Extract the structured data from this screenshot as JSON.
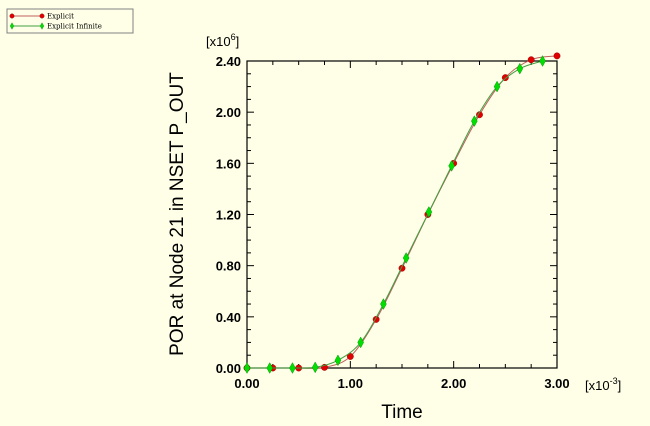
{
  "chart_data": {
    "type": "line",
    "xlabel": "Time",
    "ylabel": "POR at Node 21 in NSET P_OUT",
    "x_exponent_label": "[x10",
    "x_exponent_power": "-3",
    "y_exponent_label": "[x10",
    "y_exponent_power": "6",
    "exponent_close": "]",
    "xlim": [
      0.0,
      3.0
    ],
    "ylim": [
      0.0,
      2.4
    ],
    "x_ticks": [
      0.0,
      1.0,
      2.0,
      3.0
    ],
    "x_tick_labels": [
      "0.00",
      "1.00",
      "2.00",
      "3.00"
    ],
    "y_ticks": [
      0.0,
      0.4,
      0.8,
      1.2,
      1.6,
      2.0,
      2.4
    ],
    "y_tick_labels": [
      "0.00",
      "0.40",
      "0.80",
      "1.20",
      "1.60",
      "2.00",
      "2.40"
    ],
    "grid": false,
    "legend_position": "top-left",
    "series": [
      {
        "name": "Explicit",
        "color": "#e00000",
        "line_color": "#c06060",
        "marker": "circle",
        "x": [
          0.0,
          0.25,
          0.5,
          0.75,
          1.0,
          1.25,
          1.5,
          1.75,
          2.0,
          2.25,
          2.5,
          2.75,
          3.0
        ],
        "y": [
          0.0,
          0.0,
          0.0,
          0.005,
          0.09,
          0.38,
          0.78,
          1.2,
          1.6,
          1.98,
          2.27,
          2.41,
          2.44
        ]
      },
      {
        "name": "Explicit Infinite",
        "color": "#00e000",
        "line_color": "#40a040",
        "marker": "diamond",
        "x": [
          0.0,
          0.22,
          0.44,
          0.66,
          0.88,
          1.1,
          1.32,
          1.54,
          1.76,
          1.98,
          2.2,
          2.42,
          2.64,
          2.86
        ],
        "y": [
          0.0,
          0.0,
          0.0,
          0.005,
          0.06,
          0.2,
          0.5,
          0.86,
          1.22,
          1.58,
          1.93,
          2.2,
          2.34,
          2.4
        ]
      }
    ]
  }
}
